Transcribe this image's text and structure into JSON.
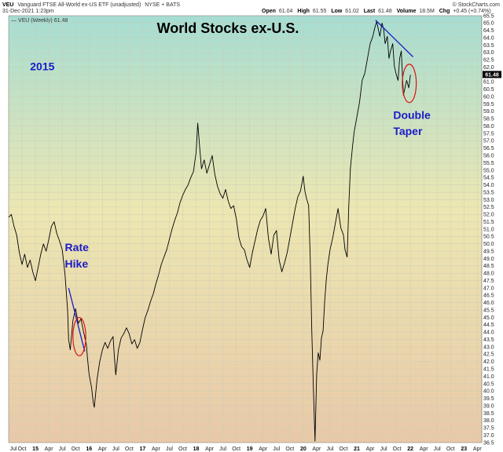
{
  "header": {
    "symbol": "VEU",
    "name": "Vanguard FTSE All-World ex-US ETF (unadjusted)",
    "exchange": "NYSE + BATS",
    "date": "31-Dec-2021 1:23pm",
    "open_label": "Open",
    "open": "61.04",
    "high_label": "High",
    "high": "61.55",
    "low_label": "Low",
    "low": "61.02",
    "last_label": "Last",
    "last": "61.48",
    "volume_label": "Volume",
    "volume": "18.5M",
    "chg_label": "Chg",
    "chg": "+0.45 (+0.74%)",
    "source": "© StockCharts.com",
    "legend": "— VEU (Weekly) 61.48",
    "last_badge": "61.48"
  },
  "colors": {
    "line": "#000000",
    "trend": "#1a1ac8",
    "circle": "#e01010",
    "bg_top": "#a6ddd2",
    "bg_mid": "#ece7b2",
    "bg_bottom": "#e8c9a8"
  },
  "chart_data": {
    "type": "line",
    "title": "World Stocks ex-U.S.",
    "ylim": [
      36.5,
      65.5
    ],
    "ytick_step": 0.5,
    "xlim": [
      2014.5,
      2023.333
    ],
    "x_tick_labels": [
      {
        "x": 2014.5,
        "label": "Jul"
      },
      {
        "x": 2014.75,
        "label": "Oct"
      },
      {
        "x": 2015.0,
        "label": "15",
        "year": true
      },
      {
        "x": 2015.25,
        "label": "Apr"
      },
      {
        "x": 2015.5,
        "label": "Jul"
      },
      {
        "x": 2015.75,
        "label": "Oct"
      },
      {
        "x": 2016.0,
        "label": "16",
        "year": true
      },
      {
        "x": 2016.25,
        "label": "Apr"
      },
      {
        "x": 2016.5,
        "label": "Jul"
      },
      {
        "x": 2016.75,
        "label": "Oct"
      },
      {
        "x": 2017.0,
        "label": "17",
        "year": true
      },
      {
        "x": 2017.25,
        "label": "Apr"
      },
      {
        "x": 2017.5,
        "label": "Jul"
      },
      {
        "x": 2017.75,
        "label": "Oct"
      },
      {
        "x": 2018.0,
        "label": "18",
        "year": true
      },
      {
        "x": 2018.25,
        "label": "Apr"
      },
      {
        "x": 2018.5,
        "label": "Jul"
      },
      {
        "x": 2018.75,
        "label": "Oct"
      },
      {
        "x": 2019.0,
        "label": "19",
        "year": true
      },
      {
        "x": 2019.25,
        "label": "Apr"
      },
      {
        "x": 2019.5,
        "label": "Jul"
      },
      {
        "x": 2019.75,
        "label": "Oct"
      },
      {
        "x": 2020.0,
        "label": "20",
        "year": true
      },
      {
        "x": 2020.25,
        "label": "Apr"
      },
      {
        "x": 2020.5,
        "label": "Jul"
      },
      {
        "x": 2020.75,
        "label": "Oct"
      },
      {
        "x": 2021.0,
        "label": "21",
        "year": true
      },
      {
        "x": 2021.25,
        "label": "Apr"
      },
      {
        "x": 2021.5,
        "label": "Jul"
      },
      {
        "x": 2021.75,
        "label": "Oct"
      },
      {
        "x": 2022.0,
        "label": "22",
        "year": true
      },
      {
        "x": 2022.25,
        "label": "Apr"
      },
      {
        "x": 2022.5,
        "label": "Jul"
      },
      {
        "x": 2022.75,
        "label": "Oct"
      },
      {
        "x": 2023.0,
        "label": "23",
        "year": true
      },
      {
        "x": 2023.25,
        "label": "Apr"
      }
    ],
    "series": [
      {
        "points": [
          [
            2014.5,
            51.8
          ],
          [
            2014.55,
            52.0
          ],
          [
            2014.6,
            51.2
          ],
          [
            2014.65,
            50.6
          ],
          [
            2014.7,
            49.4
          ],
          [
            2014.75,
            48.6
          ],
          [
            2014.8,
            49.3
          ],
          [
            2014.85,
            48.4
          ],
          [
            2014.9,
            48.9
          ],
          [
            2014.95,
            48.1
          ],
          [
            2015.0,
            47.5
          ],
          [
            2015.05,
            48.4
          ],
          [
            2015.1,
            49.3
          ],
          [
            2015.15,
            50.0
          ],
          [
            2015.2,
            49.5
          ],
          [
            2015.25,
            50.3
          ],
          [
            2015.3,
            51.2
          ],
          [
            2015.35,
            51.5
          ],
          [
            2015.4,
            50.7
          ],
          [
            2015.45,
            50.2
          ],
          [
            2015.5,
            49.6
          ],
          [
            2015.55,
            48.0
          ],
          [
            2015.6,
            45.5
          ],
          [
            2015.62,
            43.5
          ],
          [
            2015.65,
            42.8
          ],
          [
            2015.7,
            44.8
          ],
          [
            2015.75,
            45.6
          ],
          [
            2015.8,
            44.6
          ],
          [
            2015.85,
            44.9
          ],
          [
            2015.9,
            44.0
          ],
          [
            2015.95,
            43.2
          ],
          [
            2015.97,
            42.3
          ],
          [
            2016.0,
            41.2
          ],
          [
            2016.05,
            40.2
          ],
          [
            2016.08,
            39.2
          ],
          [
            2016.1,
            38.9
          ],
          [
            2016.15,
            40.8
          ],
          [
            2016.2,
            42.0
          ],
          [
            2016.25,
            42.8
          ],
          [
            2016.3,
            43.3
          ],
          [
            2016.35,
            42.9
          ],
          [
            2016.4,
            43.4
          ],
          [
            2016.45,
            43.7
          ],
          [
            2016.47,
            42.5
          ],
          [
            2016.5,
            41.1
          ],
          [
            2016.55,
            42.8
          ],
          [
            2016.6,
            43.6
          ],
          [
            2016.65,
            43.9
          ],
          [
            2016.7,
            44.3
          ],
          [
            2016.75,
            43.9
          ],
          [
            2016.8,
            43.2
          ],
          [
            2016.85,
            43.5
          ],
          [
            2016.9,
            42.9
          ],
          [
            2016.95,
            43.3
          ],
          [
            2017.0,
            44.2
          ],
          [
            2017.05,
            45.0
          ],
          [
            2017.1,
            45.5
          ],
          [
            2017.15,
            46.1
          ],
          [
            2017.2,
            46.6
          ],
          [
            2017.25,
            47.3
          ],
          [
            2017.3,
            47.9
          ],
          [
            2017.35,
            48.6
          ],
          [
            2017.4,
            49.1
          ],
          [
            2017.45,
            49.6
          ],
          [
            2017.5,
            50.3
          ],
          [
            2017.55,
            51.0
          ],
          [
            2017.6,
            51.6
          ],
          [
            2017.65,
            52.1
          ],
          [
            2017.7,
            52.8
          ],
          [
            2017.75,
            53.3
          ],
          [
            2017.8,
            53.7
          ],
          [
            2017.85,
            54.0
          ],
          [
            2017.9,
            54.5
          ],
          [
            2017.95,
            54.9
          ],
          [
            2018.0,
            56.2
          ],
          [
            2018.03,
            58.2
          ],
          [
            2018.07,
            56.4
          ],
          [
            2018.1,
            55.1
          ],
          [
            2018.15,
            55.7
          ],
          [
            2018.2,
            54.8
          ],
          [
            2018.25,
            55.4
          ],
          [
            2018.3,
            56.0
          ],
          [
            2018.35,
            54.7
          ],
          [
            2018.4,
            53.9
          ],
          [
            2018.45,
            53.4
          ],
          [
            2018.5,
            53.1
          ],
          [
            2018.55,
            53.7
          ],
          [
            2018.6,
            52.9
          ],
          [
            2018.65,
            52.4
          ],
          [
            2018.7,
            52.6
          ],
          [
            2018.75,
            51.7
          ],
          [
            2018.8,
            50.4
          ],
          [
            2018.85,
            49.8
          ],
          [
            2018.9,
            49.6
          ],
          [
            2018.95,
            48.9
          ],
          [
            2019.0,
            48.4
          ],
          [
            2019.05,
            49.4
          ],
          [
            2019.1,
            50.2
          ],
          [
            2019.15,
            51.0
          ],
          [
            2019.2,
            51.6
          ],
          [
            2019.25,
            51.9
          ],
          [
            2019.3,
            52.4
          ],
          [
            2019.35,
            50.4
          ],
          [
            2019.4,
            49.3
          ],
          [
            2019.45,
            50.6
          ],
          [
            2019.5,
            50.9
          ],
          [
            2019.55,
            48.9
          ],
          [
            2019.6,
            48.1
          ],
          [
            2019.65,
            48.7
          ],
          [
            2019.7,
            49.4
          ],
          [
            2019.75,
            50.4
          ],
          [
            2019.8,
            51.4
          ],
          [
            2019.85,
            52.4
          ],
          [
            2019.9,
            53.2
          ],
          [
            2019.95,
            53.6
          ],
          [
            2020.0,
            54.6
          ],
          [
            2020.03,
            53.6
          ],
          [
            2020.06,
            53.1
          ],
          [
            2020.1,
            52.6
          ],
          [
            2020.13,
            49.1
          ],
          [
            2020.16,
            44.1
          ],
          [
            2020.19,
            40.1
          ],
          [
            2020.22,
            36.6
          ],
          [
            2020.25,
            41.1
          ],
          [
            2020.28,
            42.6
          ],
          [
            2020.31,
            42.1
          ],
          [
            2020.34,
            43.6
          ],
          [
            2020.37,
            44.1
          ],
          [
            2020.4,
            46.1
          ],
          [
            2020.43,
            47.6
          ],
          [
            2020.46,
            48.6
          ],
          [
            2020.5,
            49.6
          ],
          [
            2020.55,
            50.4
          ],
          [
            2020.6,
            51.4
          ],
          [
            2020.65,
            52.4
          ],
          [
            2020.7,
            51.1
          ],
          [
            2020.75,
            50.6
          ],
          [
            2020.78,
            49.6
          ],
          [
            2020.82,
            49.1
          ],
          [
            2020.85,
            52.6
          ],
          [
            2020.88,
            55.1
          ],
          [
            2020.92,
            56.6
          ],
          [
            2020.95,
            57.6
          ],
          [
            2021.0,
            58.6
          ],
          [
            2021.05,
            59.6
          ],
          [
            2021.1,
            61.1
          ],
          [
            2021.15,
            61.6
          ],
          [
            2021.2,
            62.6
          ],
          [
            2021.25,
            63.6
          ],
          [
            2021.3,
            64.1
          ],
          [
            2021.33,
            64.6
          ],
          [
            2021.37,
            65.1
          ],
          [
            2021.4,
            64.6
          ],
          [
            2021.43,
            64.1
          ],
          [
            2021.47,
            65.0
          ],
          [
            2021.5,
            64.6
          ],
          [
            2021.53,
            63.6
          ],
          [
            2021.57,
            64.1
          ],
          [
            2021.6,
            62.6
          ],
          [
            2021.63,
            63.1
          ],
          [
            2021.67,
            63.6
          ],
          [
            2021.7,
            62.1
          ],
          [
            2021.73,
            61.6
          ],
          [
            2021.77,
            61.1
          ],
          [
            2021.8,
            62.6
          ],
          [
            2021.83,
            63.1
          ],
          [
            2021.87,
            60.1
          ],
          [
            2021.9,
            60.6
          ],
          [
            2021.93,
            61.1
          ],
          [
            2021.97,
            60.6
          ],
          [
            2022.0,
            61.48
          ]
        ]
      }
    ],
    "trendlines": [
      {
        "from": [
          2015.62,
          47.0
        ],
        "to": [
          2015.92,
          42.7
        ]
      },
      {
        "from": [
          2021.35,
          65.2
        ],
        "to": [
          2022.05,
          62.7
        ]
      }
    ],
    "circles": [
      {
        "cx": 2015.82,
        "cy": 43.7,
        "rx": 0.12,
        "ry": 1.3
      },
      {
        "cx": 2021.98,
        "cy": 60.9,
        "rx": 0.13,
        "ry": 1.3
      }
    ],
    "annotations": [
      {
        "text": "2015",
        "x": 2014.9,
        "y": 61.8
      },
      {
        "text": "Rate",
        "x": 2015.55,
        "y": 49.5
      },
      {
        "text": "Hike",
        "x": 2015.55,
        "y": 48.4
      },
      {
        "text": "Double",
        "x": 2021.68,
        "y": 58.5
      },
      {
        "text": "Taper",
        "x": 2021.68,
        "y": 57.4
      }
    ]
  }
}
